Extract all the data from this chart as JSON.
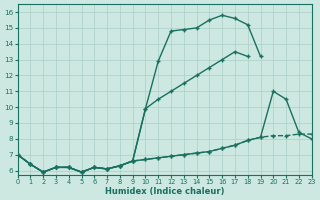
{
  "background_color": "#cce8e0",
  "grid_color": "#aacfc8",
  "line_color": "#1a7060",
  "xlabel": "Humidex (Indice chaleur)",
  "xlim": [
    0,
    23
  ],
  "ylim": [
    5.7,
    16.5
  ],
  "xticks": [
    0,
    1,
    2,
    3,
    4,
    5,
    6,
    7,
    8,
    9,
    10,
    11,
    12,
    13,
    14,
    15,
    16,
    17,
    18,
    19,
    20,
    21,
    22,
    23
  ],
  "yticks": [
    6,
    7,
    8,
    9,
    10,
    11,
    12,
    13,
    14,
    15,
    16
  ],
  "curve1_y": [
    7.0,
    6.4,
    5.9,
    6.2,
    6.2,
    5.9,
    6.2,
    6.1,
    6.3,
    6.6,
    9.9,
    12.9,
    14.8,
    14.9,
    15.0,
    15.5,
    15.8,
    15.6,
    15.2,
    13.2,
    null,
    null,
    null,
    null
  ],
  "curve2_y": [
    7.0,
    6.4,
    5.9,
    6.2,
    6.2,
    5.9,
    6.2,
    6.1,
    6.3,
    6.6,
    9.9,
    10.5,
    11.0,
    11.5,
    12.0,
    12.5,
    13.0,
    13.5,
    13.2,
    null,
    null,
    null,
    null,
    null
  ],
  "curve3_y": [
    7.0,
    6.4,
    5.9,
    6.2,
    6.2,
    5.9,
    6.2,
    6.1,
    6.3,
    6.6,
    6.7,
    6.8,
    6.9,
    7.0,
    7.1,
    7.2,
    7.4,
    7.6,
    7.9,
    8.1,
    11.0,
    10.5,
    8.4,
    8.0
  ],
  "curve4_y": [
    7.0,
    6.4,
    5.9,
    6.2,
    6.2,
    5.9,
    6.2,
    6.1,
    6.3,
    6.6,
    6.7,
    6.8,
    6.9,
    7.0,
    7.1,
    7.2,
    7.4,
    7.6,
    7.9,
    8.1,
    8.2,
    8.2,
    8.3,
    8.3
  ],
  "marker": "+",
  "markersize": 3.5,
  "linewidth": 1.0
}
